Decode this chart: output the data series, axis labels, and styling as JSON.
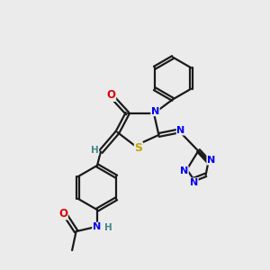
{
  "bg_color": "#ebebeb",
  "bond_color": "#1a1a1a",
  "atom_colors": {
    "N": "#0000ee",
    "O": "#dd0000",
    "S": "#bbaa00",
    "H": "#448888"
  },
  "figsize": [
    3.0,
    3.0
  ],
  "dpi": 100,
  "lw": 1.6,
  "fs": 8.0
}
